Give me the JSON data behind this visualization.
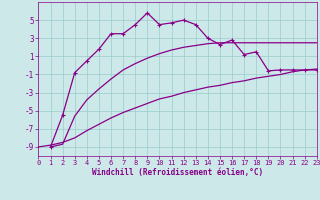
{
  "xlabel": "Windchill (Refroidissement éolien,°C)",
  "bg_color": "#cce8e8",
  "grid_color": "#99cccc",
  "line_color": "#880088",
  "xlim": [
    0,
    23
  ],
  "ylim": [
    -10,
    7
  ],
  "yticks": [
    -9,
    -7,
    -5,
    -3,
    -1,
    1,
    3,
    5
  ],
  "xticks": [
    0,
    1,
    2,
    3,
    4,
    5,
    6,
    7,
    8,
    9,
    10,
    11,
    12,
    13,
    14,
    15,
    16,
    17,
    18,
    19,
    20,
    21,
    22,
    23
  ],
  "series1_x": [
    1,
    2,
    3,
    4,
    5,
    6,
    7,
    8,
    9,
    10,
    11,
    12,
    13,
    14,
    15,
    16,
    17,
    18,
    19,
    20,
    21,
    22,
    23
  ],
  "series1_y": [
    -9.0,
    -5.5,
    -0.8,
    0.5,
    1.8,
    3.5,
    3.5,
    4.5,
    5.8,
    4.5,
    4.7,
    5.0,
    4.5,
    3.0,
    2.3,
    2.8,
    1.2,
    1.5,
    -0.6,
    -0.5,
    -0.5,
    -0.5,
    -0.5
  ],
  "series2_x": [
    1,
    2,
    3,
    4,
    5,
    6,
    7,
    8,
    9,
    10,
    11,
    12,
    13,
    14,
    15,
    16,
    17,
    18,
    19,
    20,
    21,
    22,
    23
  ],
  "series2_y": [
    -9.0,
    -8.7,
    -5.6,
    -3.8,
    -2.6,
    -1.5,
    -0.5,
    0.2,
    0.8,
    1.3,
    1.7,
    2.0,
    2.2,
    2.4,
    2.5,
    2.5,
    2.5,
    2.5,
    2.5,
    2.5,
    2.5,
    2.5,
    2.5
  ],
  "series3_x": [
    0,
    1,
    2,
    3,
    4,
    5,
    6,
    7,
    8,
    9,
    10,
    11,
    12,
    13,
    14,
    15,
    16,
    17,
    18,
    19,
    20,
    21,
    22,
    23
  ],
  "series3_y": [
    -9.0,
    -8.8,
    -8.5,
    -8.0,
    -7.2,
    -6.5,
    -5.8,
    -5.2,
    -4.7,
    -4.2,
    -3.7,
    -3.4,
    -3.0,
    -2.7,
    -2.4,
    -2.2,
    -1.9,
    -1.7,
    -1.4,
    -1.2,
    -1.0,
    -0.7,
    -0.5,
    -0.4
  ]
}
